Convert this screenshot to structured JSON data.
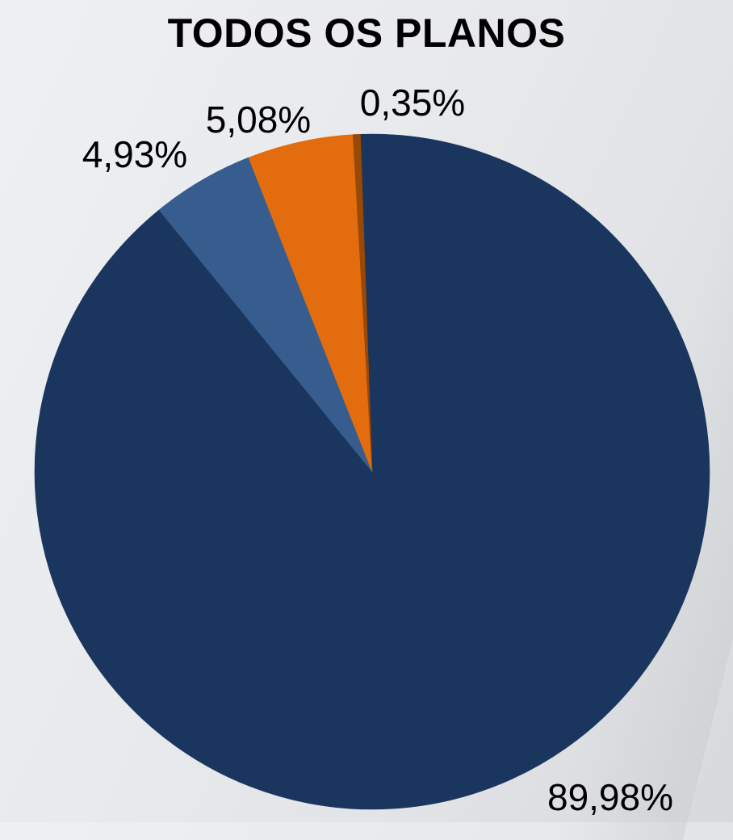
{
  "chart_data": {
    "type": "pie",
    "title": "TODOS OS PLANOS",
    "slices": [
      {
        "label": "89,98%",
        "value": 89.98,
        "color": "#1b365e"
      },
      {
        "label": "4,93%",
        "value": 4.93,
        "color": "#365d8e"
      },
      {
        "label": "5,08%",
        "value": 5.08,
        "color": "#e36c0e"
      },
      {
        "label": "0,35%",
        "value": 0.35,
        "color": "#984807"
      }
    ],
    "legend": "none"
  }
}
